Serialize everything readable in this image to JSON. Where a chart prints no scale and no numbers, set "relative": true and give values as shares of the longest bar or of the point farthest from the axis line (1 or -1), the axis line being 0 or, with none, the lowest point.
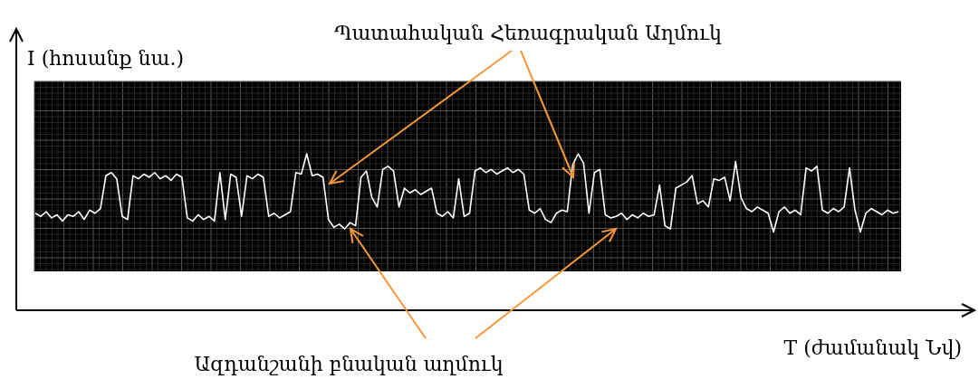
{
  "chart_data": {
    "type": "line",
    "relative": true,
    "grid": true,
    "ylabel": "I (հոսանք նա.)",
    "xlabel": "T (ժամանակ Նվ)",
    "annotations": [
      "Պատահական Հեռագրական Աղմուկ",
      "Ազդանշանի բնական աղմուկ"
    ],
    "categories": [
      null,
      null,
      null,
      null,
      null,
      null,
      null,
      null,
      null,
      null,
      null,
      null,
      null,
      null,
      null,
      null,
      null,
      null,
      null,
      null,
      null,
      null,
      null,
      null,
      null,
      null,
      null,
      null,
      null,
      null,
      null,
      null,
      null,
      null,
      null,
      null,
      null,
      null,
      null,
      null,
      null,
      null,
      null,
      null,
      null,
      null,
      null,
      null,
      null,
      null,
      null,
      null,
      null,
      null,
      null,
      null,
      null,
      null,
      null,
      null,
      null,
      null,
      null,
      null,
      null,
      null,
      null,
      null,
      null,
      null,
      null,
      null,
      null,
      null,
      null,
      null,
      null,
      null,
      null,
      null,
      null,
      null,
      null,
      null,
      null,
      null,
      null,
      null,
      null,
      null,
      null,
      null,
      null,
      null,
      null,
      null,
      null,
      null,
      null,
      null,
      null,
      null,
      null,
      null,
      null,
      null,
      null,
      null,
      null,
      null,
      null,
      null,
      null,
      null,
      null,
      null,
      null,
      null,
      null,
      null,
      null,
      null,
      null,
      null,
      null,
      null,
      null,
      null,
      null,
      null,
      null,
      null,
      null,
      null,
      null,
      null,
      null,
      null,
      null,
      null,
      null,
      null,
      null,
      null,
      null,
      null,
      null,
      null,
      null,
      null,
      null,
      null,
      null,
      null,
      null,
      null,
      null,
      null,
      null,
      null
    ],
    "series": [
      {
        "color": "#ffffff",
        "values": [
          0.62,
          0.6,
          0.63,
          0.59,
          0.61,
          0.57,
          0.61,
          0.6,
          0.63,
          0.58,
          0.64,
          0.62,
          0.65,
          0.86,
          0.88,
          0.84,
          0.6,
          0.58,
          0.86,
          0.84,
          0.87,
          0.85,
          0.88,
          0.84,
          0.86,
          0.83,
          0.87,
          0.85,
          0.59,
          0.57,
          0.61,
          0.58,
          0.6,
          0.57,
          0.88,
          0.58,
          0.87,
          0.85,
          0.6,
          0.86,
          0.84,
          0.87,
          0.85,
          0.6,
          0.62,
          0.59,
          0.61,
          0.63,
          0.88,
          0.87,
          1,
          0.86,
          0.87,
          0.85,
          0.58,
          0.53,
          0.55,
          0.52,
          0.56,
          0.54,
          0.85,
          0.89,
          0.72,
          0.66,
          0.9,
          0.92,
          0.89,
          0.66,
          0.78,
          0.75,
          0.77,
          0.74,
          0.76,
          0.78,
          0.62,
          0.6,
          0.63,
          0.59,
          0.84,
          0.6,
          0.62,
          0.89,
          0.91,
          0.88,
          0.9,
          0.87,
          0.89,
          0.91,
          0.88,
          0.9,
          0.87,
          0.64,
          0.62,
          0.65,
          0.58,
          0.56,
          0.62,
          0.64,
          0.63,
          0.93,
          1,
          0.94,
          0.62,
          0.88,
          0.9,
          0.61,
          0.59,
          0.6,
          0.62,
          0.58,
          0.61,
          0.59,
          0.62,
          0.6,
          0.61,
          0.8,
          0.54,
          0.52,
          0.78,
          0.8,
          0.82,
          0.86,
          0.68,
          0.7,
          0.66,
          0.84,
          0.83,
          0.85,
          0.7,
          0.95,
          0.72,
          0.65,
          0.63,
          0.66,
          0.64,
          0.62,
          0.5,
          0.63,
          0.66,
          0.62,
          0.64,
          0.61,
          0.91,
          0.89,
          0.92,
          0.64,
          0.62,
          0.65,
          0.63,
          0.66,
          0.91,
          0.64,
          0.5,
          0.62,
          0.65,
          0.63,
          0.61,
          0.64,
          0.62,
          0.63
        ]
      }
    ]
  }
}
